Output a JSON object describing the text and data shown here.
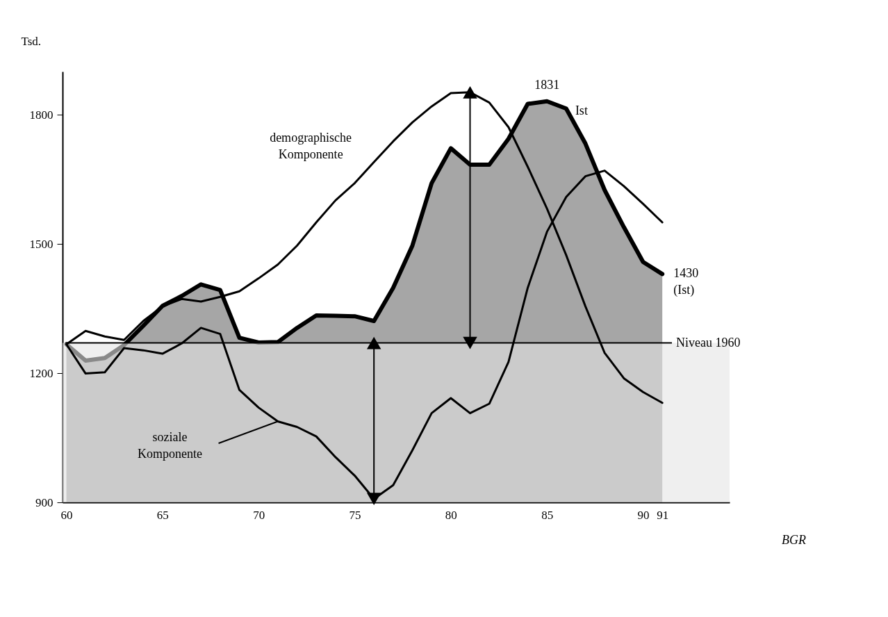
{
  "chart_data": {
    "type": "line",
    "ylabel": "Tsd.",
    "x": [
      60,
      61,
      62,
      63,
      64,
      65,
      66,
      67,
      68,
      69,
      70,
      71,
      72,
      73,
      74,
      75,
      76,
      77,
      78,
      79,
      80,
      81,
      82,
      83,
      84,
      85,
      86,
      87,
      88,
      89,
      90,
      91
    ],
    "series": [
      {
        "type": "area",
        "name": "Ist",
        "color": "#000000",
        "values": [
          1267,
          1229,
          1235,
          1265,
          1310,
          1356,
          1379,
          1406,
          1393,
          1282,
          1271,
          1272,
          1305,
          1334,
          1333,
          1332,
          1321,
          1398,
          1496,
          1641,
          1722,
          1684,
          1684,
          1744,
          1825,
          1831,
          1814,
          1733,
          1625,
          1539,
          1458,
          1430
        ]
      },
      {
        "type": "line",
        "name": "demographische\nKomponente",
        "color": "#000000",
        "values": [
          1267,
          1298,
          1285,
          1277,
          1321,
          1355,
          1372,
          1366,
          1377,
          1390,
          1420,
          1452,
          1496,
          1550,
          1601,
          1641,
          1690,
          1738,
          1782,
          1819,
          1850,
          1852,
          1828,
          1771,
          1679,
          1582,
          1474,
          1355,
          1247,
          1188,
          1156,
          1131
        ]
      },
      {
        "type": "line",
        "name": "soziale\nKomponente",
        "color": "#000000",
        "values": [
          1267,
          1199,
          1202,
          1258,
          1253,
          1245,
          1269,
          1305,
          1291,
          1161,
          1120,
          1088,
          1075,
          1053,
          1005,
          962,
          908,
          940,
          1021,
          1107,
          1142,
          1107,
          1129,
          1226,
          1398,
          1528,
          1609,
          1657,
          1670,
          1634,
          1593,
          1550
        ]
      }
    ],
    "xlim": [
      59.8,
      94.5
    ],
    "ylim": [
      900,
      1900
    ],
    "xticks": [
      60,
      65,
      70,
      75,
      80,
      85,
      90,
      91
    ],
    "yticks": [
      900,
      1200,
      1500,
      1800
    ],
    "ref_lines": [
      {
        "axis": "y",
        "value": 1270,
        "label": "Niveau 1960",
        "color": "#000000"
      }
    ],
    "bands": [
      {
        "axis": "y",
        "from": 900,
        "to": 1270,
        "color": "#e4e4e4"
      }
    ],
    "annotations": [
      {
        "text": "1831",
        "x": 85,
        "y": 1831
      },
      {
        "text": "1430\n(Ist)",
        "x": 91,
        "y": 1430
      },
      "BGR"
    ],
    "grid": false
  }
}
